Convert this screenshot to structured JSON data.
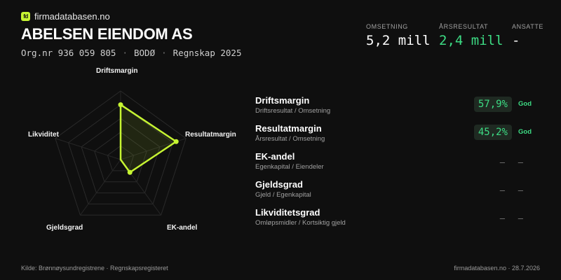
{
  "brand": {
    "logo_text": "fd",
    "name": "firmadatabasen.no"
  },
  "company": {
    "name": "ABELSEN EIENDOM AS",
    "org_nr": "Org.nr 936 059 805",
    "city": "BODØ",
    "period": "Regnskap 2025"
  },
  "stats": [
    {
      "label": "OMSETNING",
      "value": "5,2 mill",
      "color": "#ffffff"
    },
    {
      "label": "ÅRSRESULTAT",
      "value": "2,4 mill",
      "color": "#3ddc84"
    },
    {
      "label": "ANSATTE",
      "value": "-",
      "color": "#ffffff"
    }
  ],
  "radar": {
    "labels": [
      "Driftsmargin",
      "Resultatmargin",
      "EK-andel",
      "Gjeldsgrad",
      "Likviditet"
    ],
    "values": [
      0.8,
      0.85,
      0.23,
      0,
      0
    ],
    "accent": "#c6f432"
  },
  "metrics": [
    {
      "name": "Driftsmargin",
      "sub": "Driftsresultat / Omsetning",
      "value": "57,9%",
      "tag": "God"
    },
    {
      "name": "Resultatmargin",
      "sub": "Årsresultat / Omsetning",
      "value": "45,2%",
      "tag": "God"
    },
    {
      "name": "EK-andel",
      "sub": "Egenkapital / Eiendeler",
      "value": "–",
      "tag": "–"
    },
    {
      "name": "Gjeldsgrad",
      "sub": "Gjeld / Egenkapital",
      "value": "–",
      "tag": "–"
    },
    {
      "name": "Likviditetsgrad",
      "sub": "Omløpsmidler / Kortsiktig gjeld",
      "value": "–",
      "tag": "–"
    }
  ],
  "footer": {
    "source": "Kilde: Brønnøysundregistrene · Regnskapsregisteret",
    "site_date": "firmadatabasen.no · 28.7.2026"
  }
}
